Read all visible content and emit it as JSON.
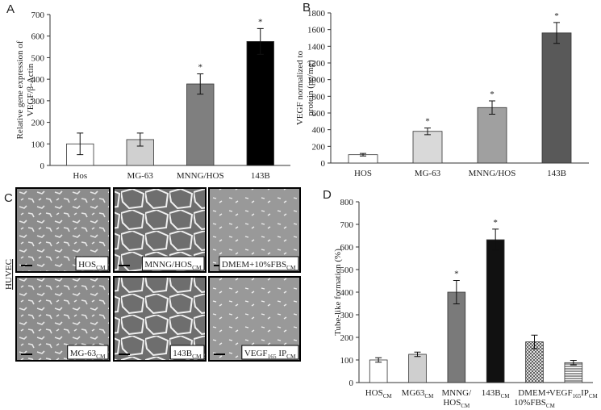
{
  "chart_data": [
    {
      "type": "bar",
      "panel_label": "A",
      "ylabel": [
        "Relative gene expression of",
        "VEGF/β-Actin"
      ],
      "categories": [
        [
          [
            "Hos"
          ]
        ],
        [
          [
            "MG-63"
          ]
        ],
        [
          [
            "MNNG/HOS"
          ]
        ],
        [
          [
            "143B"
          ]
        ]
      ],
      "values": [
        100,
        120,
        378,
        575
      ],
      "errors": [
        50,
        30,
        47,
        60
      ],
      "significance": [
        null,
        null,
        "*",
        "*"
      ],
      "colors": [
        "#ffffff",
        "#d0d0d0",
        "#7f7f7f",
        "#000000"
      ],
      "ylim": [
        0,
        700
      ],
      "yticks": [
        0,
        100,
        200,
        300,
        400,
        500,
        600,
        700
      ]
    },
    {
      "type": "bar",
      "panel_label": "B",
      "ylabel": [
        "VEGF normalized to",
        "protein (pg/mg)"
      ],
      "categories": [
        [
          [
            "HOS"
          ]
        ],
        [
          [
            "MG-63"
          ]
        ],
        [
          [
            "MNNG/HOS"
          ]
        ],
        [
          [
            "143B"
          ]
        ]
      ],
      "values": [
        100,
        380,
        665,
        1560
      ],
      "errors": [
        15,
        40,
        80,
        125
      ],
      "significance": [
        null,
        "*",
        "*",
        "*"
      ],
      "colors": [
        "#ffffff",
        "#d9d9d9",
        "#a0a0a0",
        "#595959"
      ],
      "ylim": [
        0,
        1800
      ],
      "yticks": [
        0,
        200,
        400,
        600,
        800,
        1000,
        1200,
        1400,
        1600,
        1800
      ]
    },
    {
      "type": "bar",
      "panel_label": "D",
      "ylabel": [
        "Tube-like formation (%)"
      ],
      "categories": [
        [
          [
            "HOS",
            {
              "text": "CM",
              "sub": true
            }
          ]
        ],
        [
          [
            "MG63",
            {
              "text": "CM",
              "sub": true
            }
          ]
        ],
        [
          [
            "MNNG/"
          ],
          [
            "HOS",
            {
              "text": "CM",
              "sub": true
            }
          ]
        ],
        [
          [
            "143B",
            {
              "text": "CM",
              "sub": true
            }
          ]
        ],
        [
          [
            "DMEM+"
          ],
          [
            "10%FBS",
            {
              "text": "CM",
              "sub": true
            }
          ]
        ],
        [
          [
            "VEGF",
            {
              "text": "165",
              "sub": true
            },
            "IP",
            {
              "text": "CM",
              "sub": true
            }
          ]
        ]
      ],
      "values": [
        100,
        125,
        400,
        632,
        180,
        88
      ],
      "errors": [
        10,
        10,
        52,
        47,
        30,
        10
      ],
      "significance": [
        null,
        null,
        "*",
        "*",
        null,
        null
      ],
      "colors": [
        "#ffffff",
        "#cfcfcf",
        "#7a7a7a",
        "#111111",
        "#ffffff",
        "#ffffff"
      ],
      "patterns": [
        null,
        null,
        null,
        null,
        "crosshatch",
        "hstripes"
      ],
      "ylim": [
        0,
        800
      ],
      "yticks": [
        0,
        100,
        200,
        300,
        400,
        500,
        600,
        700,
        800
      ]
    }
  ],
  "panel_c": {
    "label": "C",
    "side_label": "HUVEC",
    "images": [
      [
        [
          "HOS",
          {
            "text": "CM",
            "sub": true
          }
        ]
      ],
      [
        [
          "MNNG/HOS",
          {
            "text": "CM",
            "sub": true
          }
        ]
      ],
      [
        [
          "DMEM+10%FBS",
          {
            "text": "CM",
            "sub": true
          }
        ]
      ],
      [
        [
          "MG-63",
          {
            "text": "CM",
            "sub": true
          }
        ]
      ],
      [
        [
          "143B",
          {
            "text": "CM",
            "sub": true
          }
        ]
      ],
      [
        [
          "VEGF",
          {
            "text": "165",
            "sub": true
          },
          " IP",
          {
            "text": "CM",
            "sub": true
          }
        ]
      ]
    ]
  }
}
